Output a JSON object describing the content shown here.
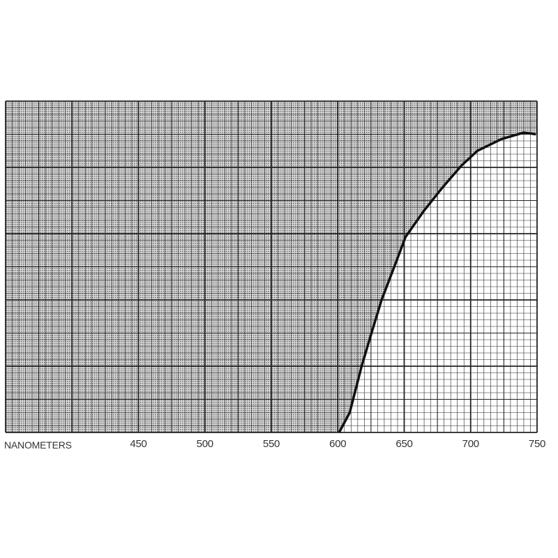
{
  "chart_data": {
    "type": "area",
    "xlabel": "NANOMETERS",
    "ylabel": "",
    "title": "",
    "xlim": [
      350,
      750
    ],
    "ylim": [
      0,
      100
    ],
    "x_ticks": [
      450,
      500,
      550,
      600,
      650,
      700,
      750
    ],
    "x_tick_labels": [
      "450",
      "500",
      "550",
      "600",
      "650",
      "700",
      "750"
    ],
    "grid": true,
    "shaded_region": "above-curve",
    "colors": {
      "line": "#111111",
      "grid": "#222222",
      "shade": "#9a9a9a"
    },
    "series": [
      {
        "x": [
          601,
          609,
          618,
          625,
          633,
          643,
          651,
          665,
          679,
          693,
          705,
          723,
          740,
          749
        ],
        "y": [
          0,
          6,
          20,
          29.5,
          40,
          50.5,
          59,
          67,
          74,
          80.5,
          85,
          88.5,
          90.5,
          90
        ]
      }
    ]
  }
}
